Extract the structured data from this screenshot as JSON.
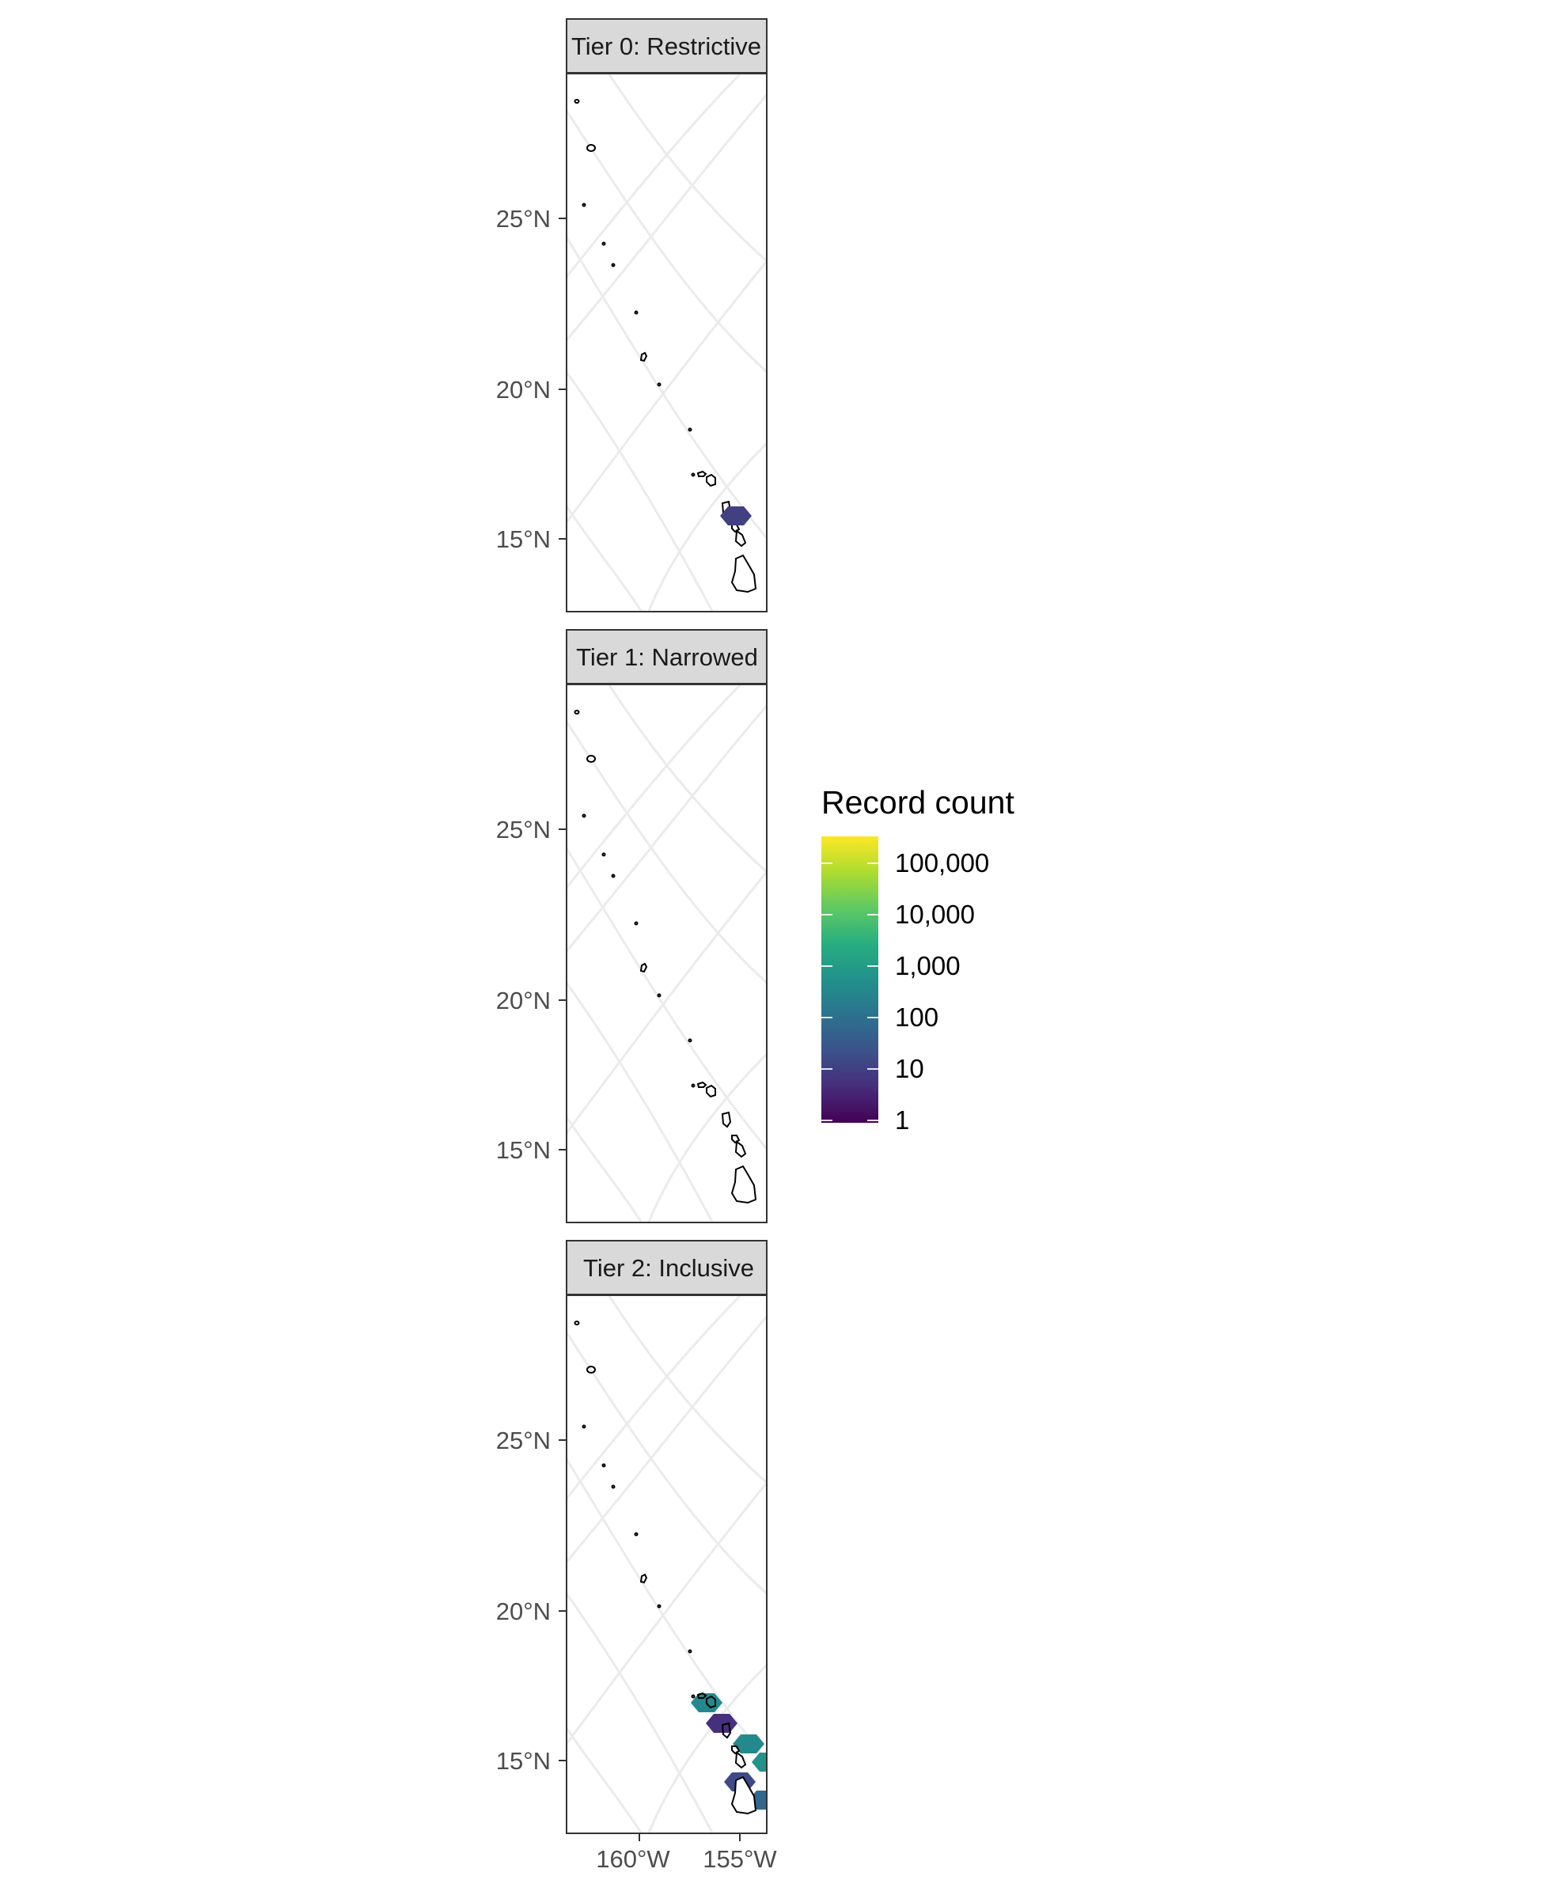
{
  "panels": [
    {
      "strip_label": "Tier 0: Restrictive",
      "cells": [
        {
          "count": 10
        }
      ]
    },
    {
      "strip_label": "Tier 1: Narrowed",
      "cells": []
    },
    {
      "strip_label": "Tier 2: Inclusive",
      "cells": [
        {
          "count": 300
        },
        {
          "count": 5
        },
        {
          "count": 300
        },
        {
          "count": 500
        },
        {
          "count": 15
        },
        {
          "count": 60
        }
      ]
    }
  ],
  "axes": {
    "y_ticks": [
      "25°N",
      "20°N",
      "15°N"
    ],
    "x_ticks": [
      "160°W",
      "155°W"
    ]
  },
  "legend": {
    "title": "Record count",
    "labels": [
      "100,000",
      "10,000",
      "1,000",
      "100",
      "10",
      "1"
    ],
    "palette": [
      "#440154",
      "#472D7B",
      "#3B528B",
      "#2C728E",
      "#21918C",
      "#28AE80",
      "#5EC962",
      "#ADDC30",
      "#FDE725"
    ]
  },
  "colors": {
    "panel_border": "#333333",
    "strip_fill": "#d9d9d9",
    "grid": "#ebebeb",
    "axis_text": "#4d4d4d"
  }
}
